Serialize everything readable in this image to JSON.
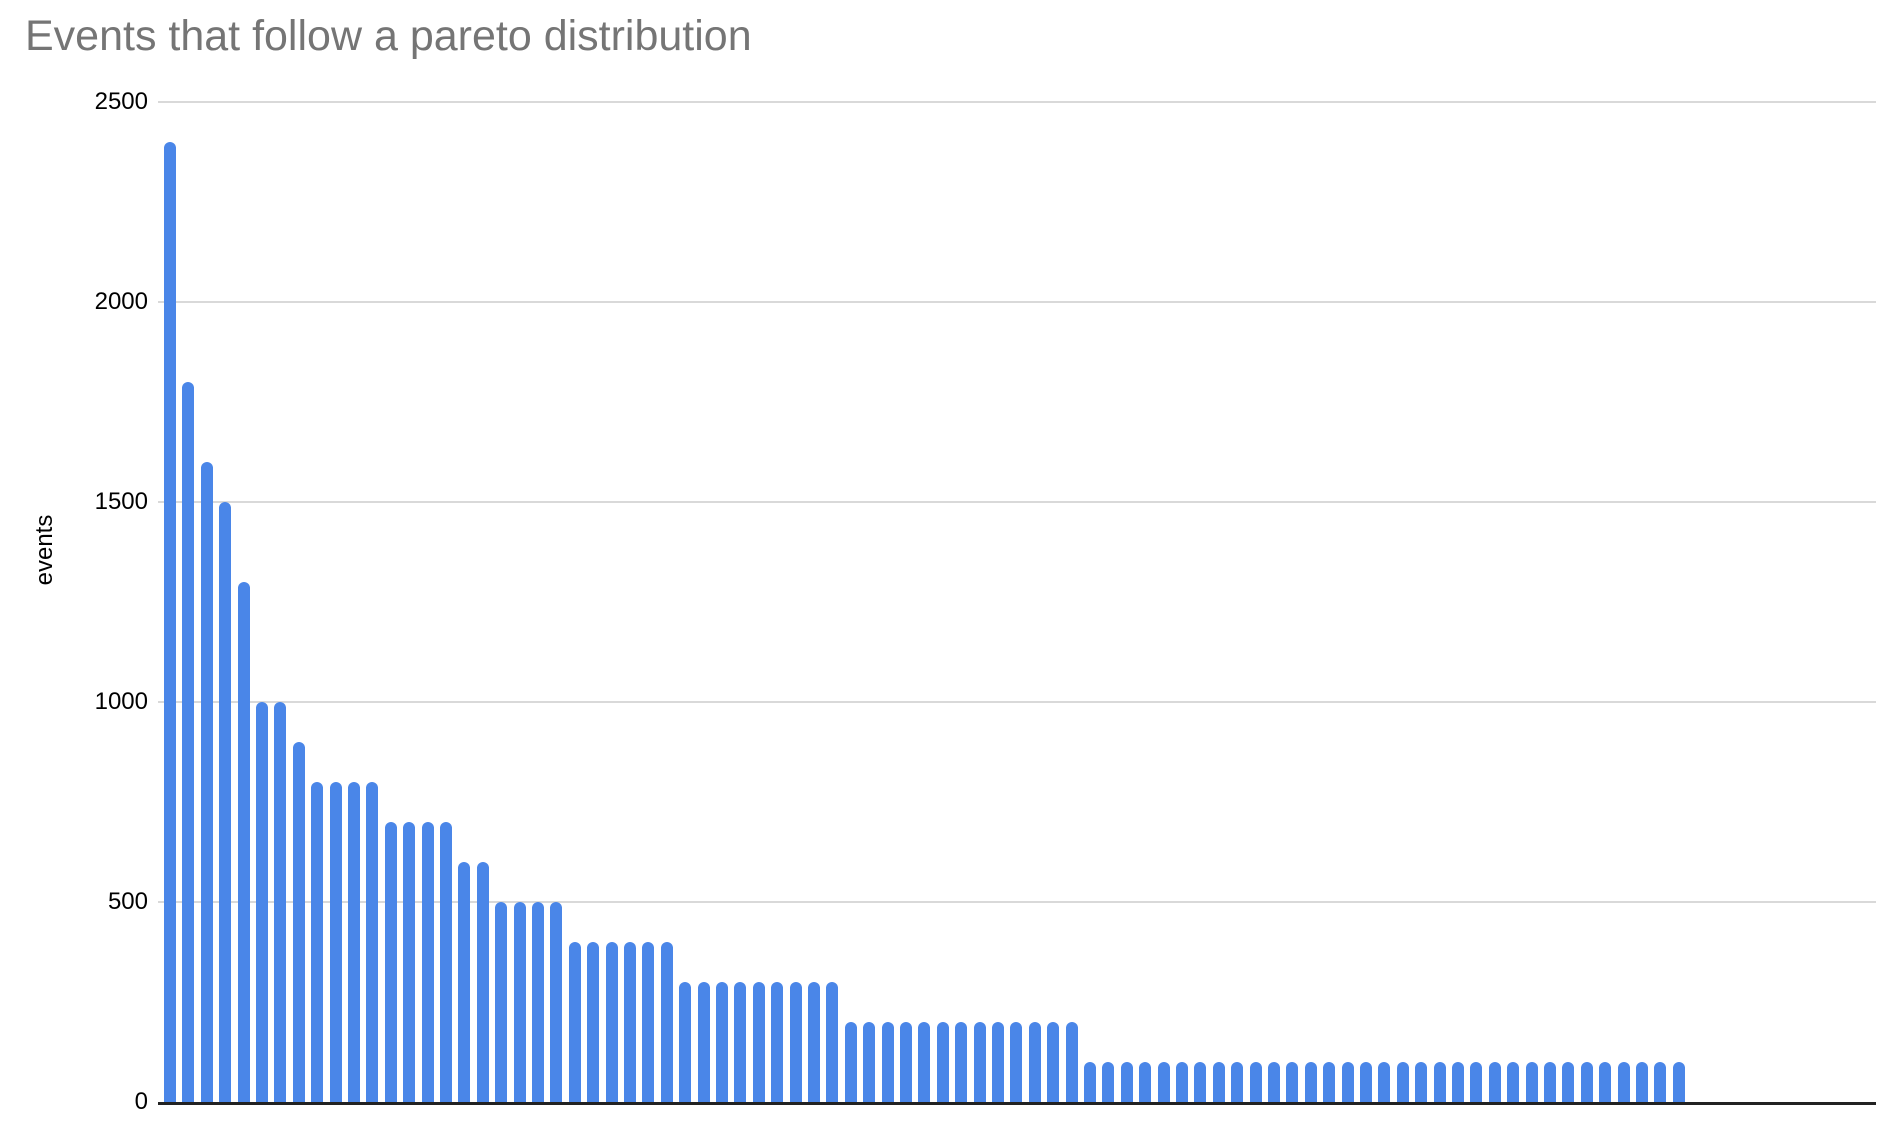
{
  "chart": {
    "title": "Events that follow a pareto distribution",
    "ylabel": "events"
  },
  "chart_data": {
    "type": "bar",
    "title": "Events that follow a pareto distribution",
    "xlabel": "",
    "ylabel": "events",
    "ylim": [
      0,
      2500
    ],
    "yticks": [
      0,
      500,
      1000,
      1500,
      2000,
      2500
    ],
    "grid": true,
    "legend_position": "none",
    "x_tick_labels_visible": false,
    "bar_color": "#4a86e8",
    "gridline_color": "#d9d9d9",
    "axis_line_color": "#222222",
    "title_color": "#757575",
    "tick_label_color": "#000000",
    "values": [
      2400,
      1800,
      1600,
      1500,
      1300,
      1000,
      1000,
      900,
      800,
      800,
      800,
      800,
      700,
      700,
      700,
      700,
      600,
      600,
      500,
      500,
      500,
      500,
      400,
      400,
      400,
      400,
      400,
      400,
      300,
      300,
      300,
      300,
      300,
      300,
      300,
      300,
      300,
      200,
      200,
      200,
      200,
      200,
      200,
      200,
      200,
      200,
      200,
      200,
      200,
      200,
      100,
      100,
      100,
      100,
      100,
      100,
      100,
      100,
      100,
      100,
      100,
      100,
      100,
      100,
      100,
      100,
      100,
      100,
      100,
      100,
      100,
      100,
      100,
      100,
      100,
      100,
      100,
      100,
      100,
      100,
      100,
      100,
      100
    ]
  }
}
